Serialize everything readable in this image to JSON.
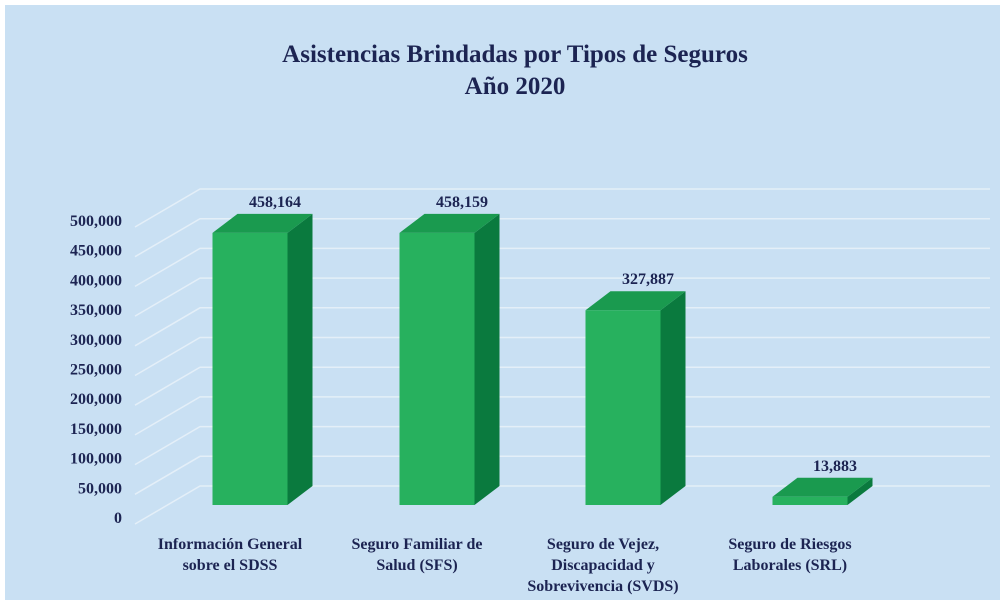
{
  "chart_data": {
    "type": "bar3d",
    "title": "Asistencias Brindadas por Tipos de  Seguros",
    "subtitle": "Año 2020",
    "categories": [
      "Información General\nsobre el SDSS",
      "Seguro Familiar de\nSalud (SFS)",
      "Seguro de Vejez,\nDiscapacidad y\nSobrevivencia (SVDS)",
      "Seguro de Riesgos\nLaborales (SRL)"
    ],
    "values": [
      458164,
      458159,
      327887,
      13883
    ],
    "value_labels": [
      "458,164",
      "458,159",
      "327,887",
      "13,883"
    ],
    "color": "#27b15e",
    "ylim": [
      0,
      500000
    ],
    "yticks": [
      0,
      {
        "value": 50000,
        "label": "50,000"
      },
      {
        "value": 100000,
        "label": "100,000"
      },
      {
        "value": 150000,
        "label": "150,000"
      },
      {
        "value": 200000,
        "label": "200,000"
      },
      {
        "value": 250000,
        "label": "250,000"
      },
      {
        "value": 300000,
        "label": "300,000"
      },
      {
        "value": 350000,
        "label": "350,000"
      },
      {
        "value": 400000,
        "label": "400,000"
      },
      {
        "value": 450000,
        "label": "450,000"
      },
      {
        "value": 500000,
        "label": "500,000"
      }
    ],
    "grid": true
  }
}
